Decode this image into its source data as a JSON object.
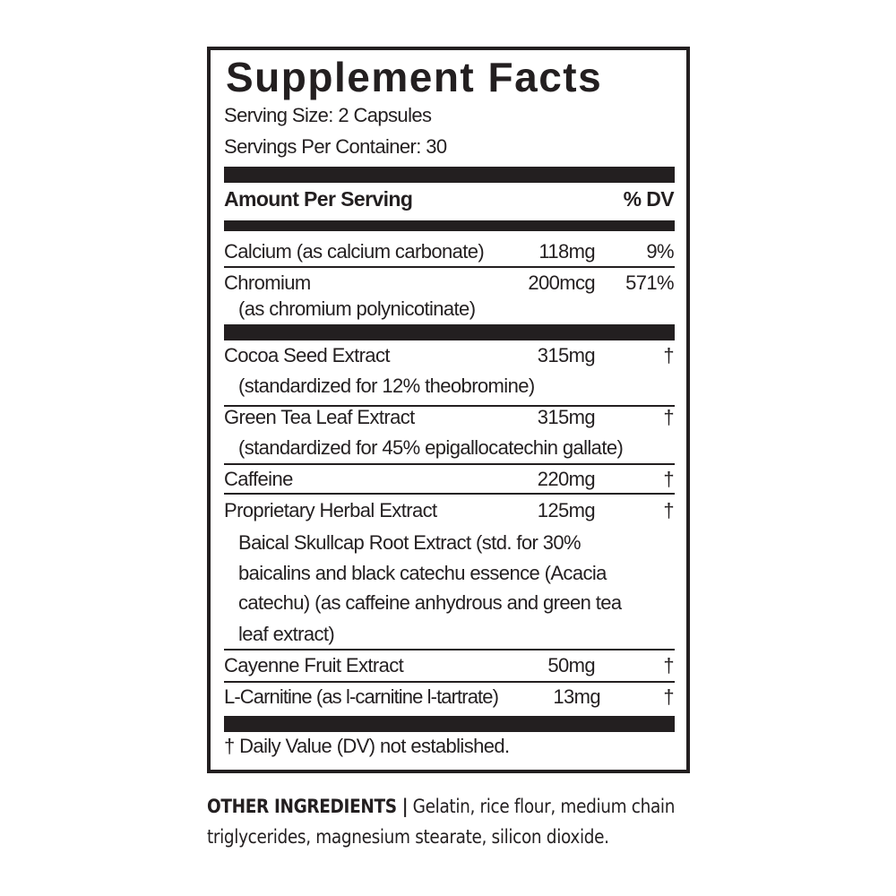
{
  "title": "Supplement Facts",
  "serving_size": "Serving Size: 2 Capsules",
  "servings_per_container": "Servings Per Container: 30",
  "header": {
    "amount": "Amount Per Serving",
    "dv": "% DV"
  },
  "rows": [
    {
      "name": "Calcium (as calcium carbonate)",
      "amount": "118mg",
      "dv": "9%"
    },
    {
      "name": "Chromium",
      "sub": "(as chromium polynicotinate)",
      "amount": "200mcg",
      "dv": "571%"
    },
    {
      "name": "Cocoa Seed Extract",
      "sub": "(standardized for 12% theobromine)",
      "amount": "315mg",
      "dv": "†"
    },
    {
      "name": "Green Tea Leaf Extract",
      "sub": "(standardized for 45% epigallocatechin gallate)",
      "amount": "315mg",
      "dv": "†"
    },
    {
      "name": "Caffeine",
      "amount": "220mg",
      "dv": "†"
    },
    {
      "name": "Proprietary Herbal Extract",
      "sub_lines": [
        "Baical Skullcap Root Extract (std. for 30%",
        "baicalins and black catechu essence (Acacia",
        "catechu) (as caffeine anhydrous and green tea",
        "leaf extract)"
      ],
      "amount": "125mg",
      "dv": "†"
    },
    {
      "name": "Cayenne Fruit Extract",
      "amount": "50mg",
      "dv": "†"
    },
    {
      "name": "L-Carnitine (as l-carnitine l-tartrate)",
      "amount": "13mg",
      "dv": "†"
    }
  ],
  "footnote": "† Daily Value (DV) not established.",
  "other_ingredients": {
    "label": "OTHER INGREDIENTS |",
    "text": "Gelatin, rice flour, medium chain triglycerides, magnesium stearate, silicon dioxide."
  }
}
